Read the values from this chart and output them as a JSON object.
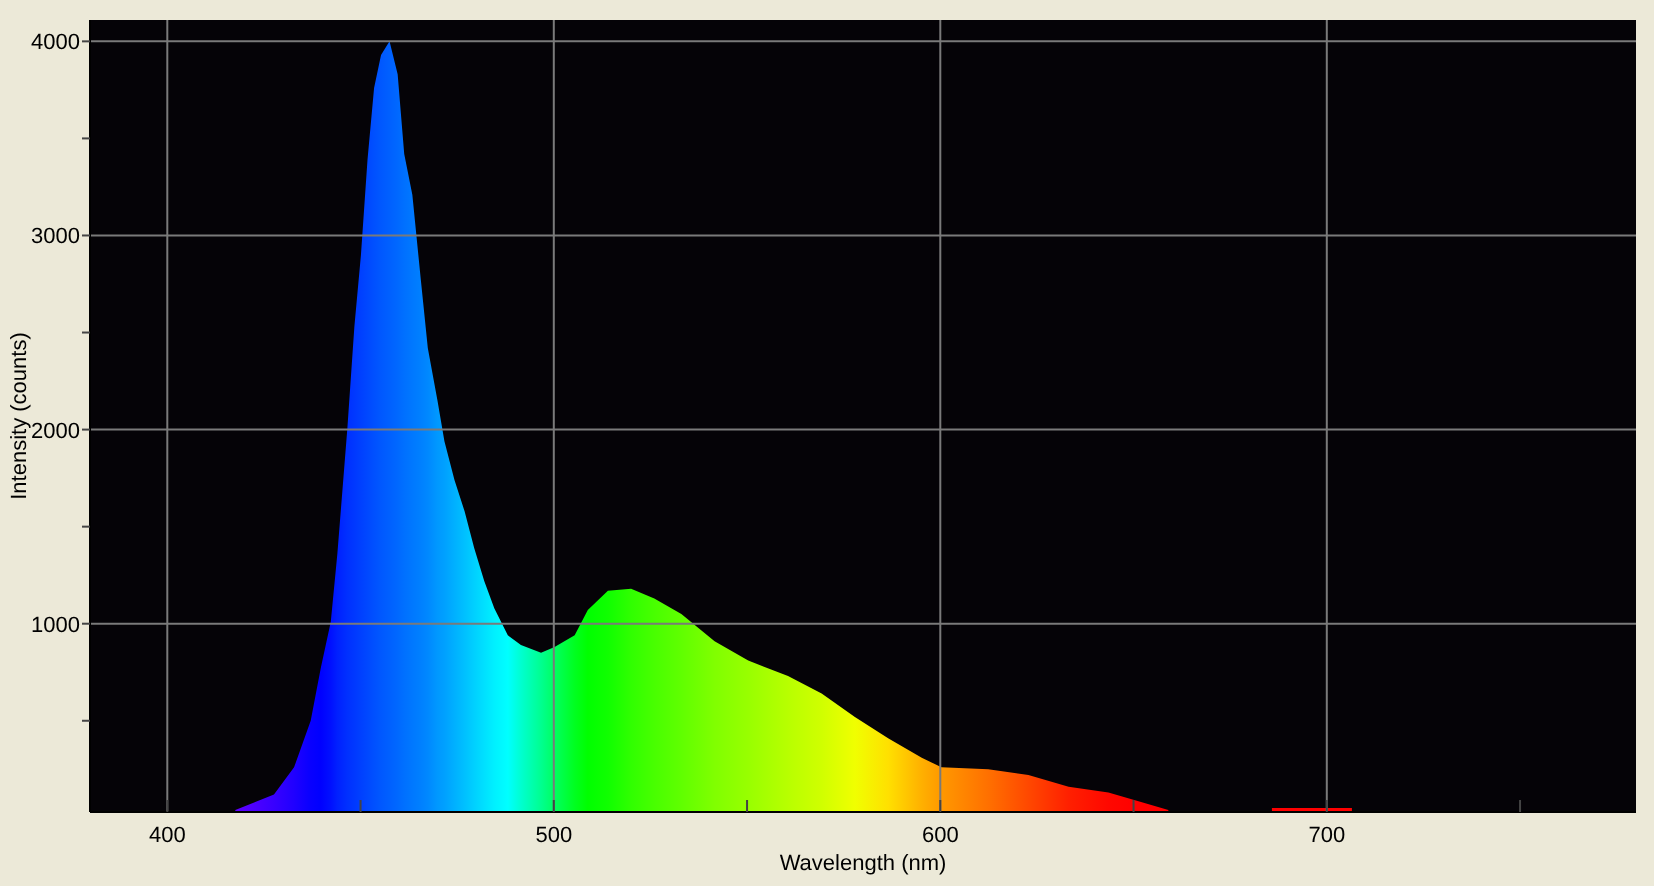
{
  "chart_data": {
    "type": "area",
    "xlabel": "Wavelength (nm)",
    "ylabel": "Intensity (counts)",
    "xlim": [
      380,
      780
    ],
    "ylim": [
      30,
      4110
    ],
    "xticks": [
      400,
      {
        "value": 450,
        "label": null
      },
      500,
      {
        "value": 550,
        "label": null
      },
      600,
      {
        "value": 650,
        "label": null
      },
      700,
      {
        "value": 750,
        "label": null
      }
    ],
    "yticks": [
      {
        "value": 500,
        "label": null
      },
      1000,
      {
        "value": 1500,
        "label": null
      },
      2000,
      {
        "value": 2500,
        "label": null
      },
      3000,
      {
        "value": 3500,
        "label": null
      },
      4000
    ],
    "grid": true,
    "series": [
      {
        "x": [
          417.6,
          427.6,
          432.8,
          437.1,
          439.7,
          442.3,
          444,
          446.6,
          448.4,
          450.1,
          451.8,
          453.5,
          455.3,
          457.5,
          459.6,
          461.3,
          463.4,
          465.6,
          467.4,
          469.9,
          471.7,
          474.3,
          476.9,
          479.4,
          482,
          484.6,
          488.1,
          491.5,
          496.7,
          500.2,
          505.4,
          508.8,
          514,
          520,
          526,
          533,
          541.6,
          550.3,
          560.6,
          569.3,
          577.9,
          586.5,
          595.2,
          600.3,
          612.4,
          622.8,
          633.2,
          643.5,
          650.4,
          659
        ],
        "values": [
          40,
          120,
          260,
          500,
          770,
          1010,
          1360,
          2010,
          2530,
          2900,
          3390,
          3760,
          3930,
          4000,
          3830,
          3420,
          3210,
          2770,
          2420,
          2150,
          1940,
          1740,
          1580,
          1390,
          1220,
          1080,
          940,
          890,
          850,
          880,
          940,
          1070,
          1170,
          1180,
          1130,
          1050,
          910,
          810,
          730,
          640,
          520,
          410,
          310,
          260,
          250,
          220,
          160,
          130,
          90,
          40
        ],
        "colors": [
          "#6000ff",
          "#3800ff",
          "#2000ff",
          "#0800ff",
          "#0000ff",
          "#0010ff",
          "#0020ff",
          "#0030ff",
          "#0038ff",
          "#0040ff",
          "#0048ff",
          "#0050ff",
          "#0058ff",
          "#0060ff",
          "#0068ff",
          "#0070ff",
          "#0078ff",
          "#0080ff",
          "#0088ff",
          "#0098ff",
          "#00a0ff",
          "#00b0ff",
          "#00c0ff",
          "#00d0ff",
          "#00e0ff",
          "#00f0ff",
          "#00ffff",
          "#00ffd0",
          "#00ff90",
          "#00ff60",
          "#00ff20",
          "#00ff00",
          "#10ff00",
          "#30ff00",
          "#48ff00",
          "#60ff00",
          "#80ff00",
          "#98ff00",
          "#b8ff00",
          "#d0ff00",
          "#f0ff00",
          "#ffe000",
          "#ffb000",
          "#ff9800",
          "#ff7000",
          "#ff4800",
          "#ff2000",
          "#ff0800",
          "#ff0000",
          "#ff0000"
        ]
      },
      {
        "x": [
          685.8,
          706.5
        ],
        "values": [
          50,
          50
        ],
        "colors": [
          "#ff0000",
          "#ff0000"
        ]
      }
    ]
  }
}
